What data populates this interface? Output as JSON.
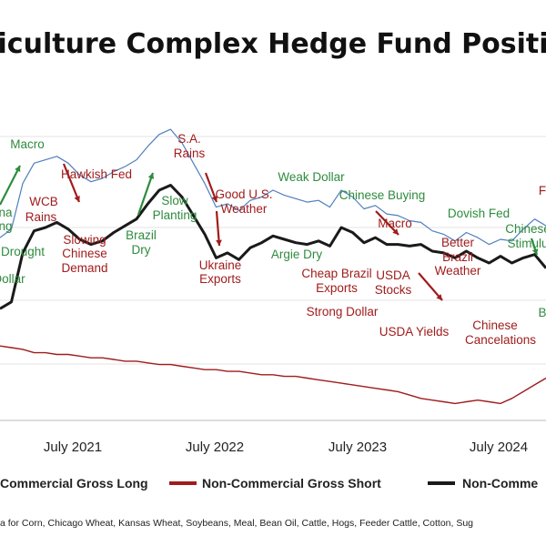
{
  "chart_data": {
    "type": "line",
    "title": "iculture Complex Hedge Fund Positi",
    "x_axis_ticks": [
      "July 2021",
      "July 2022",
      "July 2023",
      "July 2024"
    ],
    "colors": {
      "gross_long": "#4f7fbf",
      "gross_short": "#a01c1c",
      "net": "#1a1a1a",
      "bull_annotation": "#2e8b3e",
      "bear_annotation": "#a01c1c",
      "grid": "#e3e3e3",
      "axis": "#bbbbbb"
    },
    "grid": true,
    "y_axis": "hidden",
    "series": [
      {
        "key": "long",
        "name": "Non-Commercial Gross Long",
        "x": [
          "2020-12",
          "2021-01",
          "2021-02",
          "2021-03",
          "2021-04",
          "2021-05",
          "2021-06",
          "2021-07",
          "2021-08",
          "2021-09",
          "2021-10",
          "2021-11",
          "2021-12",
          "2022-01",
          "2022-02",
          "2022-03",
          "2022-04",
          "2022-05",
          "2022-06",
          "2022-07",
          "2022-08",
          "2022-09",
          "2022-10",
          "2022-11",
          "2022-12",
          "2023-01",
          "2023-02",
          "2023-03",
          "2023-04",
          "2023-05",
          "2023-06",
          "2023-07",
          "2023-08",
          "2023-09",
          "2023-10",
          "2023-11",
          "2023-12",
          "2024-01",
          "2024-02",
          "2024-03",
          "2024-04",
          "2024-05",
          "2024-06",
          "2024-07",
          "2024-08",
          "2024-09",
          "2024-10",
          "2024-11",
          "2024-12"
        ],
        "y": [
          108,
          113,
          140,
          152,
          154,
          156,
          152,
          145,
          141,
          143,
          147,
          150,
          154,
          162,
          169,
          172,
          164,
          152,
          140,
          126,
          128,
          124,
          130,
          132,
          136,
          133,
          131,
          129,
          130,
          126,
          136,
          132,
          125,
          127,
          122,
          121,
          118,
          117,
          112,
          110,
          106,
          111,
          108,
          104,
          107,
          106,
          113,
          119,
          115
        ]
      },
      {
        "key": "short",
        "name": "Non-Commercial Gross Short",
        "x": [
          "2020-12",
          "2021-01",
          "2021-02",
          "2021-03",
          "2021-04",
          "2021-05",
          "2021-06",
          "2021-07",
          "2021-08",
          "2021-09",
          "2021-10",
          "2021-11",
          "2021-12",
          "2022-01",
          "2022-02",
          "2022-03",
          "2022-04",
          "2022-05",
          "2022-06",
          "2022-07",
          "2022-08",
          "2022-09",
          "2022-10",
          "2022-11",
          "2022-12",
          "2023-01",
          "2023-02",
          "2023-03",
          "2023-04",
          "2023-05",
          "2023-06",
          "2023-07",
          "2023-08",
          "2023-09",
          "2023-10",
          "2023-11",
          "2023-12",
          "2024-01",
          "2024-02",
          "2024-03",
          "2024-04",
          "2024-05",
          "2024-06",
          "2024-07",
          "2024-08",
          "2024-09",
          "2024-10",
          "2024-11",
          "2024-12"
        ],
        "y": [
          44,
          43,
          42,
          40,
          40,
          39,
          39,
          38,
          37,
          37,
          36,
          35,
          35,
          34,
          33,
          33,
          32,
          31,
          30,
          30,
          29,
          29,
          28,
          27,
          27,
          26,
          26,
          25,
          24,
          23,
          22,
          21,
          20,
          19,
          18,
          17,
          15,
          13,
          12,
          11,
          10,
          11,
          12,
          11,
          10,
          13,
          17,
          21,
          25
        ]
      },
      {
        "key": "net",
        "name": "Non-Comme",
        "x": [
          "2020-12",
          "2021-01",
          "2021-02",
          "2021-03",
          "2021-04",
          "2021-05",
          "2021-06",
          "2021-07",
          "2021-08",
          "2021-09",
          "2021-10",
          "2021-11",
          "2021-12",
          "2022-01",
          "2022-02",
          "2022-03",
          "2022-04",
          "2022-05",
          "2022-06",
          "2022-07",
          "2022-08",
          "2022-09",
          "2022-10",
          "2022-11",
          "2022-12",
          "2023-01",
          "2023-02",
          "2023-03",
          "2023-04",
          "2023-05",
          "2023-06",
          "2023-07",
          "2023-08",
          "2023-09",
          "2023-10",
          "2023-11",
          "2023-12",
          "2024-01",
          "2024-02",
          "2024-03",
          "2024-04",
          "2024-05",
          "2024-06",
          "2024-07",
          "2024-08",
          "2024-09",
          "2024-10",
          "2024-11",
          "2024-12"
        ],
        "y": [
          66,
          70,
          99,
          112,
          114,
          117,
          113,
          107,
          104,
          106,
          111,
          115,
          119,
          128,
          136,
          139,
          132,
          121,
          110,
          96,
          99,
          95,
          102,
          105,
          109,
          107,
          105,
          104,
          106,
          103,
          114,
          111,
          105,
          108,
          104,
          104,
          103,
          104,
          100,
          99,
          96,
          100,
          96,
          93,
          97,
          93,
          96,
          98,
          90
        ]
      }
    ],
    "annotations": [
      {
        "text": "Macro",
        "tone": "bull"
      },
      {
        "text": "na",
        "tone": "bull"
      },
      {
        "text": "ng",
        "tone": "bull"
      },
      {
        "text": "Drought",
        "tone": "bull"
      },
      {
        "text": "Dollar",
        "tone": "bull"
      },
      {
        "text": "WCB",
        "tone": "bear"
      },
      {
        "text": "Rains",
        "tone": "bear"
      },
      {
        "text": "Hawkish Fed",
        "tone": "bear"
      },
      {
        "text": "Slowing",
        "tone": "bear"
      },
      {
        "text": "Chinese",
        "tone": "bear"
      },
      {
        "text": "Demand",
        "tone": "bear"
      },
      {
        "text": "Brazil",
        "tone": "bull"
      },
      {
        "text": "Dry",
        "tone": "bull"
      },
      {
        "text": "S.A.",
        "tone": "bear"
      },
      {
        "text": "Rains",
        "tone": "bear"
      },
      {
        "text": "Slow",
        "tone": "bull"
      },
      {
        "text": "Planting",
        "tone": "bull"
      },
      {
        "text": "Good U.S.",
        "tone": "bear"
      },
      {
        "text": "Weather",
        "tone": "bear"
      },
      {
        "text": "Ukraine",
        "tone": "bear"
      },
      {
        "text": "Exports",
        "tone": "bear"
      },
      {
        "text": "Weak Dollar",
        "tone": "bull"
      },
      {
        "text": "Argie Dry",
        "tone": "bull"
      },
      {
        "text": "Cheap Brazil",
        "tone": "bear"
      },
      {
        "text": "Exports",
        "tone": "bear"
      },
      {
        "text": "Chinese Buying",
        "tone": "bull"
      },
      {
        "text": "Macro",
        "tone": "bear"
      },
      {
        "text": "USDA",
        "tone": "bear"
      },
      {
        "text": "Stocks",
        "tone": "bear"
      },
      {
        "text": "Strong Dollar",
        "tone": "bear"
      },
      {
        "text": "USDA Yields",
        "tone": "bear"
      },
      {
        "text": "Better",
        "tone": "bear"
      },
      {
        "text": "Brazil",
        "tone": "bear"
      },
      {
        "text": "Weather",
        "tone": "bear"
      },
      {
        "text": "Dovish Fed",
        "tone": "bull"
      },
      {
        "text": "Chinese",
        "tone": "bull"
      },
      {
        "text": "Stimulu",
        "tone": "bull"
      },
      {
        "text": "Chinese",
        "tone": "bear"
      },
      {
        "text": "Cancelations",
        "tone": "bear"
      },
      {
        "text": "F",
        "tone": "bear"
      },
      {
        "text": "B",
        "tone": "bull"
      }
    ],
    "legend": {
      "position": "bottom",
      "items": [
        {
          "label": "Commercial Gross Long",
          "series": "long"
        },
        {
          "label": "Non-Commercial Gross Short",
          "series": "short"
        },
        {
          "label": "Non-Comme",
          "series": "net"
        }
      ]
    },
    "source_note": "a for Corn, Chicago Wheat, Kansas Wheat, Soybeans, Meal, Bean Oil, Cattle, Hogs, Feeder Cattle, Cotton, Sug"
  }
}
